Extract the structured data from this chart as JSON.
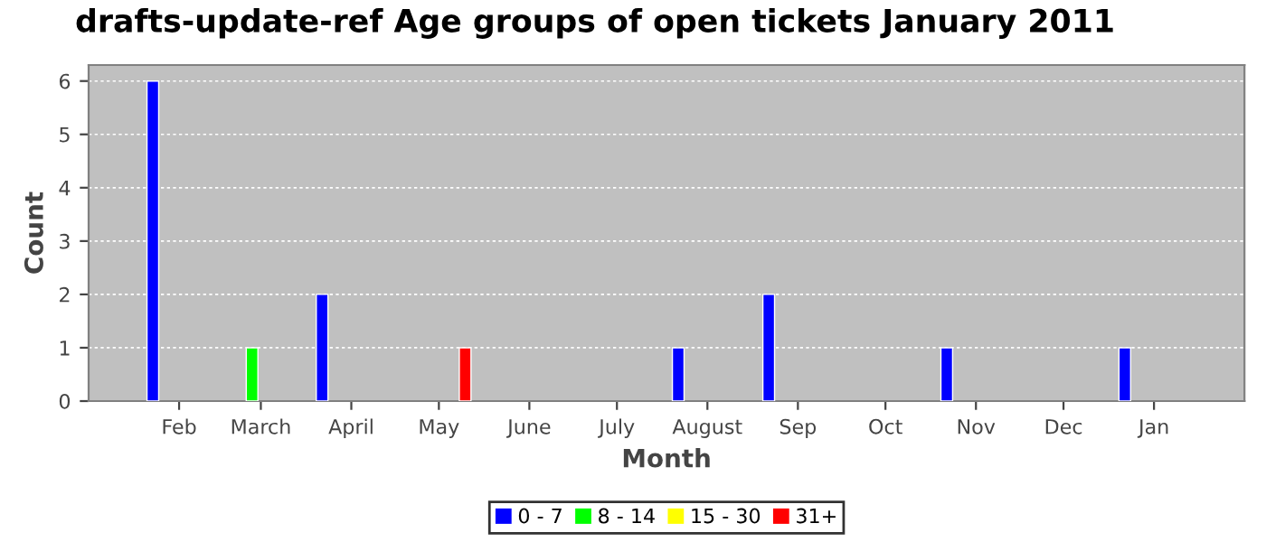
{
  "chart_data": {
    "type": "bar",
    "title": "drafts-update-ref Age groups of open tickets January 2011",
    "xlabel": "Month",
    "ylabel": "Count",
    "xlim": [
      "2010-01-01",
      "2011-02-01"
    ],
    "xticks": [
      {
        "value": "2010-02-01",
        "label": "Feb"
      },
      {
        "value": "2010-03-01",
        "label": "March"
      },
      {
        "value": "2010-04-01",
        "label": "April"
      },
      {
        "value": "2010-05-01",
        "label": "May"
      },
      {
        "value": "2010-06-01",
        "label": "June"
      },
      {
        "value": "2010-07-01",
        "label": "July"
      },
      {
        "value": "2010-08-01",
        "label": "August"
      },
      {
        "value": "2010-09-01",
        "label": "Sep"
      },
      {
        "value": "2010-10-01",
        "label": "Oct"
      },
      {
        "value": "2010-11-01",
        "label": "Nov"
      },
      {
        "value": "2010-12-01",
        "label": "Dec"
      },
      {
        "value": "2011-01-01",
        "label": "Jan"
      }
    ],
    "ylim": [
      0,
      6.3
    ],
    "yticks": [
      0,
      1,
      2,
      3,
      4,
      5,
      6
    ],
    "grid": "y",
    "legend": "bottom",
    "series": [
      {
        "name": "0 - 7",
        "color": "#0000ff",
        "x": [
          "2010-01-23",
          "2010-03-22",
          "2010-07-22",
          "2010-08-22",
          "2010-10-22",
          "2010-12-22"
        ],
        "values": [
          6,
          2,
          1,
          2,
          1,
          1
        ]
      },
      {
        "name": "8 - 14",
        "color": "#00ff00",
        "x": [
          "2010-02-26"
        ],
        "values": [
          1
        ]
      },
      {
        "name": "15 - 30",
        "color": "#ffff00"
      },
      {
        "name": "31+",
        "color": "#ff0000",
        "x": [
          "2010-05-10"
        ],
        "values": [
          1
        ]
      }
    ]
  }
}
